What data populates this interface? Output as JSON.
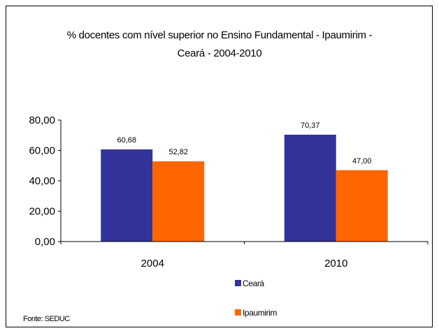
{
  "chart_data": {
    "type": "bar",
    "title_line1": "% docentes com nível superior no Ensino Fundamental - Ipaumirim -",
    "title_line2": "Ceará - 2004-2010",
    "categories": [
      "2004",
      "2010"
    ],
    "series": [
      {
        "name": "Ceará",
        "color": "#333399",
        "values": [
          60.68,
          70.37
        ],
        "labels": [
          "60,68",
          "70,37"
        ]
      },
      {
        "name": "Ipaumirim",
        "color": "#FF6600",
        "values": [
          52.82,
          47.0
        ],
        "labels": [
          "52,82",
          "47,00"
        ]
      }
    ],
    "ylim": [
      0,
      80
    ],
    "yticks": [
      0,
      20,
      40,
      60,
      80
    ],
    "ytick_labels": [
      "0,00",
      "20,00",
      "40,00",
      "60,00",
      "80,00"
    ],
    "grid": false,
    "legend_placement": "bottom-center"
  },
  "source": "Fonte: SEDUC"
}
